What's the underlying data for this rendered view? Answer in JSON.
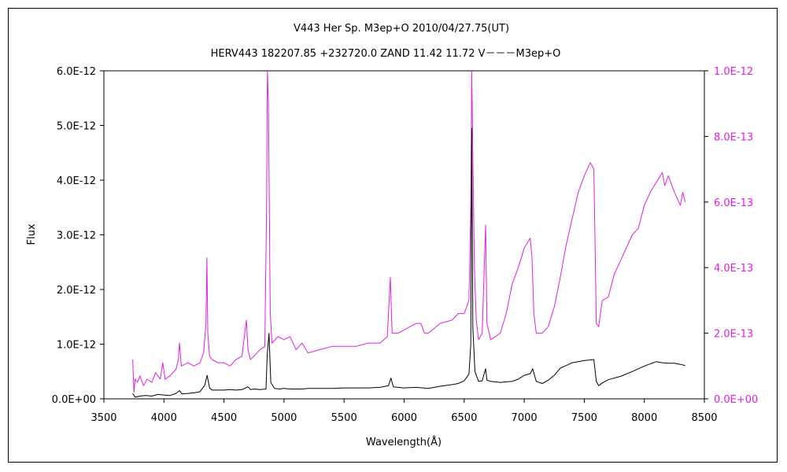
{
  "chart_data": {
    "type": "line",
    "title": "V443 Her    Sp. M3ep+O    2010/04/27.75(UT)",
    "subtitle": "HERV443 182207.85 +232720.0 ZAND 11.42 11.72  V－－－M3ep+O",
    "xlabel": "Wavelength(Å)",
    "ylabel": "Flux",
    "xlim": [
      3500,
      8500
    ],
    "xticks": [
      3500,
      4000,
      4500,
      5000,
      5500,
      6000,
      6500,
      7000,
      7500,
      8000,
      8500
    ],
    "ylim_left": [
      0,
      6e-12
    ],
    "yticks_left": [
      "0.0E+00",
      "1.0E-12",
      "2.0E-12",
      "3.0E-12",
      "4.0E-12",
      "5.0E-12",
      "6.0E-12"
    ],
    "ylim_right": [
      0,
      1e-12
    ],
    "yticks_right": [
      "0.0E+00",
      "2.0E-13",
      "4.0E-13",
      "6.0E-13",
      "8.0E-13",
      "1.0E-12"
    ],
    "grid": false,
    "legend": "none",
    "colors": {
      "left_series": "#000000",
      "right_series": "#e020e0",
      "right_axis": "#e020e0"
    },
    "series": [
      {
        "axis": "left",
        "x": [
          3740,
          3760,
          3800,
          3850,
          3900,
          3950,
          4000,
          4050,
          4100,
          4130,
          4150,
          4200,
          4250,
          4300,
          4340,
          4360,
          4380,
          4400,
          4450,
          4500,
          4550,
          4600,
          4650,
          4700,
          4720,
          4750,
          4800,
          4850,
          4860,
          4875,
          4890,
          4920,
          4960,
          5000,
          5050,
          5100,
          5150,
          5200,
          5300,
          5400,
          5500,
          5600,
          5700,
          5800,
          5870,
          5890,
          5910,
          5950,
          6000,
          6100,
          6200,
          6300,
          6400,
          6450,
          6500,
          6540,
          6555,
          6563,
          6572,
          6590,
          6620,
          6650,
          6678,
          6690,
          6720,
          6800,
          6900,
          6950,
          7000,
          7050,
          7070,
          7100,
          7150,
          7200,
          7250,
          7300,
          7400,
          7500,
          7580,
          7600,
          7620,
          7650,
          7700,
          7800,
          7900,
          8000,
          8100,
          8150,
          8200,
          8250,
          8300,
          8340
        ],
        "y": [
          1e-13,
          3e-14,
          5e-14,
          6e-14,
          5e-14,
          8e-14,
          7e-14,
          6e-14,
          1e-13,
          1.5e-13,
          9e-14,
          1e-13,
          1.1e-13,
          1.3e-13,
          2.5e-13,
          4.3e-13,
          2e-13,
          1.6e-13,
          1.6e-13,
          1.6e-13,
          1.7e-13,
          1.6e-13,
          1.7e-13,
          2.2e-13,
          1.7e-13,
          1.8e-13,
          1.7e-13,
          1.8e-13,
          8e-13,
          1.2e-12,
          3e-13,
          1.9e-13,
          1.8e-13,
          1.9e-13,
          1.8e-13,
          1.8e-13,
          1.8e-13,
          1.9e-13,
          1.9e-13,
          1.9e-13,
          2e-13,
          2e-13,
          2e-13,
          2.1e-13,
          2.4e-13,
          3.8e-13,
          2.2e-13,
          2.1e-13,
          2e-13,
          2.1e-13,
          1.9e-13,
          2.3e-13,
          2.6e-13,
          2.8e-13,
          3.3e-13,
          4.5e-13,
          1e-12,
          4.95e-12,
          1.3e-12,
          5e-13,
          3.2e-13,
          3.3e-13,
          5.5e-13,
          3.4e-13,
          3.2e-13,
          3e-13,
          3.2e-13,
          3.6e-13,
          4.3e-13,
          4.6e-13,
          5.5e-13,
          3.2e-13,
          2.8e-13,
          3.4e-13,
          4.3e-13,
          5.6e-13,
          6.6e-13,
          7e-13,
          7.2e-13,
          3.2e-13,
          2.4e-13,
          2.9e-13,
          3.5e-13,
          4.1e-13,
          5e-13,
          6e-13,
          6.8e-13,
          6.6e-13,
          6.5e-13,
          6.5e-13,
          6.3e-13,
          6.1e-13
        ]
      },
      {
        "axis": "right",
        "x": [
          3740,
          3750,
          3760,
          3780,
          3800,
          3830,
          3860,
          3900,
          3930,
          3970,
          3990,
          4010,
          4050,
          4100,
          4120,
          4130,
          4145,
          4200,
          4250,
          4300,
          4330,
          4350,
          4358,
          4365,
          4380,
          4400,
          4450,
          4500,
          4550,
          4600,
          4650,
          4686,
          4700,
          4720,
          4750,
          4800,
          4840,
          4855,
          4862,
          4870,
          4885,
          4900,
          4950,
          5000,
          5050,
          5100,
          5150,
          5200,
          5300,
          5400,
          5500,
          5600,
          5700,
          5800,
          5860,
          5885,
          5900,
          5950,
          6000,
          6100,
          6140,
          6170,
          6200,
          6300,
          6400,
          6450,
          6500,
          6540,
          6556,
          6563,
          6570,
          6585,
          6600,
          6620,
          6650,
          6678,
          6690,
          6720,
          6800,
          6850,
          6900,
          6950,
          7000,
          7050,
          7065,
          7080,
          7100,
          7150,
          7200,
          7250,
          7300,
          7350,
          7400,
          7450,
          7500,
          7550,
          7580,
          7600,
          7620,
          7650,
          7700,
          7750,
          7800,
          7850,
          7900,
          7950,
          8000,
          8050,
          8100,
          8150,
          8170,
          8200,
          8250,
          8300,
          8320,
          8340
        ],
        "y": [
          1.2e-13,
          2e-14,
          6e-14,
          5e-14,
          7e-14,
          4e-14,
          6e-14,
          5e-14,
          8e-14,
          6e-14,
          1.1e-13,
          6e-14,
          7e-14,
          9e-14,
          1.2e-13,
          1.7e-13,
          1e-13,
          1.1e-13,
          1e-13,
          1.1e-13,
          1.4e-13,
          2.3e-13,
          4.3e-13,
          2e-13,
          1.3e-13,
          1.2e-13,
          1.1e-13,
          1.1e-13,
          1e-13,
          1.2e-13,
          1.3e-13,
          2.4e-13,
          1.5e-13,
          1.2e-13,
          1.3e-13,
          1.5e-13,
          1.6e-13,
          6e-13,
          1e-12,
          9e-13,
          2.6e-13,
          1.7e-13,
          1.9e-13,
          1.8e-13,
          1.9e-13,
          1.5e-13,
          1.7e-13,
          1.4e-13,
          1.5e-13,
          1.6e-13,
          1.6e-13,
          1.6e-13,
          1.7e-13,
          1.7e-13,
          1.9e-13,
          3.7e-13,
          2e-13,
          2e-13,
          2.1e-13,
          2.3e-13,
          2.3e-13,
          2e-13,
          2e-13,
          2.3e-13,
          2.4e-13,
          2.6e-13,
          2.6e-13,
          3e-13,
          6e-13,
          1e-12,
          8e-13,
          4e-13,
          2.4e-13,
          1.8e-13,
          2e-13,
          5.3e-13,
          2.3e-13,
          1.8e-13,
          2e-13,
          2.6e-13,
          3.5e-13,
          4e-13,
          4.6e-13,
          4.9e-13,
          4.3e-13,
          2.6e-13,
          2e-13,
          2e-13,
          2.2e-13,
          2.8e-13,
          3.7e-13,
          4.7e-13,
          5.5e-13,
          6.3e-13,
          6.8e-13,
          7.2e-13,
          7e-13,
          2.3e-13,
          2.2e-13,
          3e-13,
          3.1e-13,
          3.8e-13,
          4.2e-13,
          4.6e-13,
          5e-13,
          5.2e-13,
          5.9e-13,
          6.3e-13,
          6.6e-13,
          6.9e-13,
          6.5e-13,
          6.8e-13,
          6.3e-13,
          5.9e-13,
          6.3e-13,
          6e-13
        ]
      }
    ]
  }
}
